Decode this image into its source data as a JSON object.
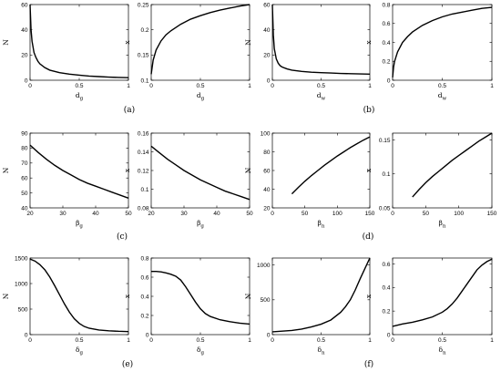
{
  "chart_data": [
    {
      "type": "line",
      "xlabel": "d",
      "xsub": "g",
      "ylabel": "N",
      "xlim": [
        0,
        1
      ],
      "ylim": [
        0,
        60
      ],
      "xticks": [
        0,
        0.5,
        1
      ],
      "yticks": [
        0,
        20,
        40,
        60
      ],
      "series": [
        {
          "x": [
            0,
            0.005,
            0.01,
            0.02,
            0.04,
            0.06,
            0.08,
            0.1,
            0.15,
            0.2,
            0.3,
            0.4,
            0.5,
            0.6,
            0.7,
            0.8,
            0.9,
            1.0
          ],
          "y": [
            60,
            50,
            40,
            31,
            22,
            18,
            15,
            13,
            10,
            8,
            6,
            4.8,
            4,
            3.3,
            2.9,
            2.5,
            2.2,
            2
          ]
        }
      ]
    },
    {
      "type": "line",
      "xlabel": "d",
      "xsub": "g",
      "ylabel": "x",
      "xlim": [
        0,
        1
      ],
      "ylim": [
        0.1,
        0.25
      ],
      "xticks": [
        0,
        0.5,
        1
      ],
      "yticks": [
        0.1,
        0.15,
        0.2,
        0.25
      ],
      "series": [
        {
          "x": [
            0,
            0.02,
            0.05,
            0.1,
            0.15,
            0.2,
            0.3,
            0.4,
            0.5,
            0.6,
            0.7,
            0.8,
            0.9,
            1.0
          ],
          "y": [
            0.112,
            0.14,
            0.16,
            0.178,
            0.19,
            0.198,
            0.211,
            0.221,
            0.228,
            0.234,
            0.239,
            0.243,
            0.247,
            0.25
          ]
        }
      ]
    },
    {
      "type": "line",
      "xlabel": "d",
      "xsub": "w",
      "ylabel": "N",
      "xlim": [
        0,
        1
      ],
      "ylim": [
        0,
        60
      ],
      "xticks": [
        0,
        0.5,
        1
      ],
      "yticks": [
        0,
        20,
        40,
        60
      ],
      "series": [
        {
          "x": [
            0,
            0.005,
            0.01,
            0.02,
            0.04,
            0.06,
            0.08,
            0.1,
            0.15,
            0.2,
            0.3,
            0.4,
            0.5,
            0.6,
            0.7,
            0.8,
            0.9,
            1.0
          ],
          "y": [
            60,
            48,
            36,
            25,
            17,
            13.5,
            11.5,
            10.5,
            9,
            8,
            7,
            6.4,
            6,
            5.7,
            5.4,
            5.2,
            5.0,
            4.8
          ]
        }
      ]
    },
    {
      "type": "line",
      "xlabel": "d",
      "xsub": "w",
      "ylabel": "x",
      "xlim": [
        0,
        1
      ],
      "ylim": [
        0,
        0.8
      ],
      "xticks": [
        0,
        0.5,
        1
      ],
      "yticks": [
        0,
        0.2,
        0.4,
        0.6,
        0.8
      ],
      "series": [
        {
          "x": [
            0,
            0.01,
            0.02,
            0.05,
            0.1,
            0.15,
            0.2,
            0.3,
            0.4,
            0.5,
            0.6,
            0.7,
            0.8,
            0.9,
            1.0
          ],
          "y": [
            0.03,
            0.14,
            0.2,
            0.3,
            0.4,
            0.46,
            0.51,
            0.58,
            0.63,
            0.67,
            0.7,
            0.72,
            0.74,
            0.76,
            0.77
          ]
        }
      ]
    },
    {
      "type": "line",
      "xlabel": "β",
      "xsub": "g",
      "ylabel": "N",
      "xlim": [
        20,
        50
      ],
      "ylim": [
        40,
        90
      ],
      "xticks": [
        20,
        30,
        40,
        50
      ],
      "yticks": [
        40,
        50,
        60,
        70,
        80,
        90
      ],
      "series": [
        {
          "x": [
            20,
            22.5,
            25,
            27.5,
            30,
            32.5,
            35,
            37.5,
            40,
            42.5,
            45,
            47.5,
            50
          ],
          "y": [
            82,
            77,
            72.5,
            68.5,
            65,
            62,
            59,
            56.5,
            54.5,
            52.5,
            50.5,
            48.5,
            46.5
          ]
        }
      ]
    },
    {
      "type": "line",
      "xlabel": "β",
      "xsub": "g",
      "ylabel": "x",
      "xlim": [
        20,
        50
      ],
      "ylim": [
        0.08,
        0.16
      ],
      "xticks": [
        20,
        30,
        40,
        50
      ],
      "yticks": [
        0.08,
        0.1,
        0.12,
        0.14,
        0.16
      ],
      "series": [
        {
          "x": [
            20,
            22.5,
            25,
            27.5,
            30,
            32.5,
            35,
            37.5,
            40,
            42.5,
            45,
            47.5,
            50
          ],
          "y": [
            0.146,
            0.139,
            0.132,
            0.126,
            0.12,
            0.115,
            0.11,
            0.106,
            0.102,
            0.098,
            0.095,
            0.092,
            0.089
          ]
        }
      ]
    },
    {
      "type": "line",
      "xlabel": "β",
      "xsub": "n",
      "ylabel": "N",
      "xlim": [
        0,
        150
      ],
      "ylim": [
        20,
        100
      ],
      "xticks": [
        0,
        50,
        100,
        150
      ],
      "yticks": [
        20,
        40,
        60,
        80,
        100
      ],
      "series": [
        {
          "x": [
            30,
            40,
            50,
            60,
            70,
            80,
            90,
            100,
            110,
            120,
            130,
            140,
            150
          ],
          "y": [
            35,
            42,
            48.5,
            54.5,
            60,
            65.5,
            70.5,
            75.5,
            80,
            84.5,
            88.5,
            92.5,
            96
          ]
        }
      ]
    },
    {
      "type": "line",
      "xlabel": "β",
      "xsub": "n",
      "ylabel": "x",
      "xlim": [
        0,
        150
      ],
      "ylim": [
        0.05,
        0.16
      ],
      "xticks": [
        0,
        50,
        100,
        150
      ],
      "yticks": [
        0.05,
        0.1,
        0.15
      ],
      "series": [
        {
          "x": [
            30,
            40,
            50,
            60,
            70,
            80,
            90,
            100,
            110,
            120,
            130,
            140,
            150
          ],
          "y": [
            0.066,
            0.077,
            0.087,
            0.096,
            0.104,
            0.112,
            0.12,
            0.127,
            0.134,
            0.141,
            0.148,
            0.154,
            0.16
          ]
        }
      ]
    },
    {
      "type": "line",
      "xlabel": "δ",
      "xsub": "g",
      "ylabel": "N",
      "xlim": [
        0,
        1
      ],
      "ylim": [
        0,
        1500
      ],
      "xticks": [
        0,
        0.5,
        1
      ],
      "yticks": [
        0,
        500,
        1000,
        1500
      ],
      "series": [
        {
          "x": [
            0,
            0.05,
            0.1,
            0.15,
            0.2,
            0.25,
            0.3,
            0.35,
            0.4,
            0.45,
            0.5,
            0.55,
            0.6,
            0.7,
            0.8,
            0.9,
            1.0
          ],
          "y": [
            1480,
            1440,
            1370,
            1270,
            1130,
            960,
            780,
            600,
            440,
            310,
            220,
            160,
            125,
            90,
            75,
            65,
            60
          ]
        }
      ]
    },
    {
      "type": "line",
      "xlabel": "δ",
      "xsub": "g",
      "ylabel": "x",
      "xlim": [
        0,
        1
      ],
      "ylim": [
        0,
        0.8
      ],
      "xticks": [
        0,
        0.5,
        1
      ],
      "yticks": [
        0,
        0.2,
        0.4,
        0.6,
        0.8
      ],
      "series": [
        {
          "x": [
            0,
            0.05,
            0.1,
            0.15,
            0.2,
            0.25,
            0.3,
            0.35,
            0.4,
            0.45,
            0.5,
            0.55,
            0.6,
            0.7,
            0.8,
            0.9,
            1.0
          ],
          "y": [
            0.66,
            0.66,
            0.655,
            0.645,
            0.63,
            0.61,
            0.57,
            0.5,
            0.42,
            0.34,
            0.27,
            0.22,
            0.19,
            0.155,
            0.135,
            0.12,
            0.11
          ]
        }
      ]
    },
    {
      "type": "line",
      "xlabel": "δ",
      "xsub": "n",
      "ylabel": "N",
      "xlim": [
        0,
        1
      ],
      "ylim": [
        0,
        1100
      ],
      "xticks": [
        0,
        0.5,
        1
      ],
      "yticks": [
        0,
        500,
        1000
      ],
      "series": [
        {
          "x": [
            0,
            0.1,
            0.2,
            0.3,
            0.4,
            0.5,
            0.6,
            0.7,
            0.75,
            0.8,
            0.85,
            0.9,
            0.95,
            1.0
          ],
          "y": [
            40,
            50,
            60,
            80,
            110,
            150,
            210,
            320,
            400,
            500,
            640,
            800,
            950,
            1100
          ]
        }
      ]
    },
    {
      "type": "line",
      "xlabel": "δ",
      "xsub": "n",
      "ylabel": "x",
      "xlim": [
        0,
        1
      ],
      "ylim": [
        0,
        0.65
      ],
      "xticks": [
        0,
        0.5,
        1
      ],
      "yticks": [
        0,
        0.2,
        0.4,
        0.6
      ],
      "series": [
        {
          "x": [
            0,
            0.1,
            0.2,
            0.3,
            0.4,
            0.5,
            0.55,
            0.6,
            0.65,
            0.7,
            0.75,
            0.8,
            0.85,
            0.9,
            0.95,
            1.0
          ],
          "y": [
            0.07,
            0.09,
            0.105,
            0.125,
            0.15,
            0.19,
            0.22,
            0.26,
            0.31,
            0.37,
            0.43,
            0.49,
            0.55,
            0.59,
            0.62,
            0.64
          ]
        }
      ]
    }
  ],
  "panel_labels": [
    "(a)",
    "(b)",
    "(c)",
    "(d)",
    "(e)",
    "(f)"
  ]
}
